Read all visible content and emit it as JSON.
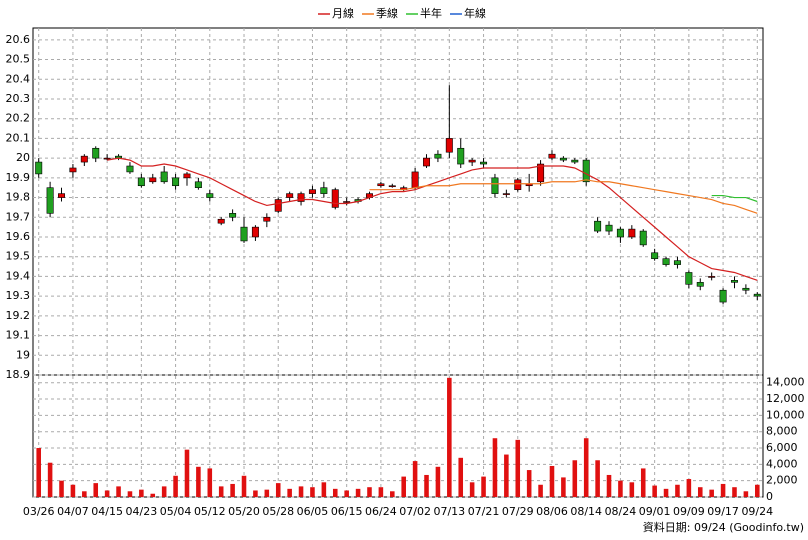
{
  "chart_data": {
    "type": "candlestick",
    "legend": [
      {
        "name": "月線",
        "color": "#d42020"
      },
      {
        "name": "季線",
        "color": "#f07820"
      },
      {
        "name": "半年",
        "color": "#30c030"
      },
      {
        "name": "年線",
        "color": "#2060d0"
      }
    ],
    "categories": [
      "03/26",
      null,
      null,
      "04/07",
      null,
      null,
      "04/15",
      null,
      null,
      "04/23",
      null,
      null,
      "05/04",
      null,
      null,
      "05/12",
      null,
      null,
      "05/20",
      null,
      null,
      "05/28",
      null,
      null,
      "06/05",
      null,
      null,
      "06/15",
      null,
      null,
      "06/24",
      null,
      null,
      "07/02",
      null,
      null,
      "07/13",
      null,
      null,
      "07/21",
      null,
      null,
      "07/29",
      null,
      null,
      "08/06",
      null,
      null,
      "08/14",
      null,
      null,
      "08/24",
      null,
      null,
      "09/01",
      null,
      null,
      "09/09",
      null,
      null,
      "09/17",
      null,
      null,
      "09/24"
    ],
    "open": [
      19.98,
      19.85,
      19.8,
      19.93,
      19.98,
      20.05,
      20.0,
      20.01,
      19.96,
      19.9,
      19.88,
      19.93,
      19.9,
      19.9,
      19.88,
      19.82,
      19.67,
      19.72,
      19.65,
      19.6,
      19.68,
      19.73,
      19.8,
      19.78,
      19.82,
      19.85,
      19.75,
      19.78,
      19.79,
      19.8,
      19.86,
      19.86,
      19.84,
      19.85,
      19.96,
      20.02,
      20.03,
      20.05,
      19.98,
      19.98,
      19.9,
      19.82,
      19.84,
      19.86,
      19.88,
      20.0,
      20.0,
      19.99,
      19.99,
      19.68,
      19.66,
      19.64,
      19.6,
      19.63,
      19.52,
      19.49,
      19.48,
      19.42,
      19.37,
      19.4,
      19.33,
      19.38,
      19.34,
      19.31
    ],
    "high": [
      20.0,
      19.88,
      19.85,
      19.97,
      20.02,
      20.06,
      20.02,
      20.02,
      19.98,
      19.92,
      19.92,
      19.96,
      19.92,
      19.93,
      19.9,
      19.84,
      19.7,
      19.74,
      19.7,
      19.66,
      19.72,
      19.8,
      19.83,
      19.83,
      19.86,
      19.88,
      19.85,
      19.8,
      19.8,
      19.83,
      19.88,
      19.87,
      19.86,
      19.95,
      20.02,
      20.04,
      20.37,
      20.1,
      20.0,
      20.0,
      19.92,
      19.84,
      19.9,
      19.92,
      19.99,
      20.04,
      20.01,
      20.0,
      20.0,
      19.7,
      19.68,
      19.65,
      19.66,
      19.64,
      19.54,
      19.5,
      19.5,
      19.43,
      19.39,
      19.42,
      19.34,
      19.4,
      19.36,
      19.32
    ],
    "low": [
      19.9,
      19.7,
      19.78,
      19.9,
      19.96,
      19.98,
      19.99,
      19.99,
      19.92,
      19.85,
      19.87,
      19.87,
      19.84,
      19.86,
      19.84,
      19.78,
      19.66,
      19.68,
      19.57,
      19.58,
      19.65,
      19.72,
      19.78,
      19.76,
      19.8,
      19.8,
      19.74,
      19.76,
      19.77,
      19.79,
      19.85,
      19.85,
      19.83,
      19.84,
      19.95,
      19.98,
      20.0,
      19.95,
      19.96,
      19.95,
      19.8,
      19.8,
      19.83,
      19.83,
      19.86,
      19.99,
      19.98,
      19.97,
      19.86,
      19.62,
      19.61,
      19.57,
      19.59,
      19.55,
      19.48,
      19.45,
      19.44,
      19.34,
      19.33,
      19.38,
      19.26,
      19.34,
      19.31,
      19.28
    ],
    "close": [
      19.92,
      19.72,
      19.82,
      19.95,
      20.01,
      20.0,
      20.0,
      20.0,
      19.93,
      19.86,
      19.9,
      19.88,
      19.86,
      19.92,
      19.85,
      19.8,
      19.69,
      19.7,
      19.58,
      19.65,
      19.7,
      19.79,
      19.82,
      19.82,
      19.84,
      19.82,
      19.84,
      19.78,
      19.78,
      19.82,
      19.87,
      19.86,
      19.85,
      19.93,
      20.0,
      20.0,
      20.1,
      19.97,
      19.99,
      19.97,
      19.82,
      19.82,
      19.89,
      19.87,
      19.97,
      20.02,
      19.99,
      19.98,
      19.88,
      19.63,
      19.63,
      19.6,
      19.64,
      19.56,
      19.49,
      19.46,
      19.46,
      19.36,
      19.35,
      19.4,
      19.27,
      19.37,
      19.33,
      19.3
    ],
    "up_color": "#e00000",
    "down_color": "#20a020",
    "series": [
      {
        "name": "月線",
        "color": "#d42020",
        "values": [
          null,
          null,
          null,
          null,
          null,
          null,
          19.99,
          20.0,
          19.99,
          19.96,
          19.96,
          19.97,
          19.96,
          19.94,
          19.92,
          19.9,
          19.87,
          19.84,
          19.81,
          19.78,
          19.76,
          19.77,
          19.78,
          19.79,
          19.79,
          19.78,
          19.77,
          19.77,
          19.78,
          19.8,
          19.82,
          19.83,
          19.83,
          19.84,
          19.86,
          19.88,
          19.9,
          19.92,
          19.94,
          19.95,
          19.95,
          19.95,
          19.95,
          19.95,
          19.96,
          19.96,
          19.96,
          19.95,
          19.92,
          19.89,
          19.85,
          19.8,
          19.75,
          19.7,
          19.65,
          19.6,
          19.55,
          19.5,
          19.47,
          19.44,
          19.43,
          19.42,
          19.4,
          19.38
        ]
      },
      {
        "name": "季線",
        "color": "#f07820",
        "values": [
          null,
          null,
          null,
          null,
          null,
          null,
          null,
          null,
          null,
          null,
          null,
          null,
          null,
          null,
          null,
          null,
          null,
          null,
          null,
          null,
          null,
          null,
          null,
          null,
          null,
          null,
          null,
          null,
          null,
          19.84,
          19.84,
          19.84,
          19.84,
          19.85,
          19.86,
          19.86,
          19.86,
          19.87,
          19.87,
          19.87,
          19.87,
          19.87,
          19.87,
          19.87,
          19.87,
          19.88,
          19.88,
          19.88,
          19.89,
          19.88,
          19.88,
          19.87,
          19.86,
          19.85,
          19.84,
          19.83,
          19.82,
          19.81,
          19.8,
          19.79,
          19.77,
          19.76,
          19.74,
          19.72
        ]
      },
      {
        "name": "半年",
        "color": "#30c030",
        "values": [
          null,
          null,
          null,
          null,
          null,
          null,
          null,
          null,
          null,
          null,
          null,
          null,
          null,
          null,
          null,
          null,
          null,
          null,
          null,
          null,
          null,
          null,
          null,
          null,
          null,
          null,
          null,
          null,
          null,
          null,
          null,
          null,
          null,
          null,
          null,
          null,
          null,
          null,
          null,
          null,
          null,
          null,
          null,
          null,
          null,
          null,
          null,
          null,
          null,
          null,
          null,
          null,
          null,
          null,
          null,
          null,
          null,
          null,
          null,
          19.81,
          19.81,
          19.8,
          19.8,
          19.78
        ]
      },
      {
        "name": "年線",
        "color": "#2060d0",
        "values": [
          null,
          null,
          null,
          null,
          null,
          null,
          null,
          null,
          null,
          null,
          null,
          null,
          null,
          null,
          null,
          null,
          null,
          null,
          null,
          null,
          null,
          null,
          null,
          null,
          null,
          null,
          null,
          null,
          null,
          null,
          null,
          null,
          null,
          null,
          null,
          null,
          null,
          null,
          null,
          null,
          null,
          null,
          null,
          null,
          null,
          null,
          null,
          null,
          null,
          null,
          null,
          null,
          null,
          null,
          null,
          null,
          null,
          null,
          null,
          null,
          null,
          null,
          null,
          null
        ]
      }
    ],
    "ylim": [
      18.9,
      20.66
    ],
    "yticks": [
      18.9,
      19,
      19.1,
      19.2,
      19.3,
      19.4,
      19.5,
      19.6,
      19.7,
      19.8,
      19.9,
      20,
      20.1,
      20.2,
      20.3,
      20.4,
      20.5,
      20.6
    ],
    "volume": {
      "color": "#e01010",
      "values": [
        6000,
        4200,
        2000,
        1500,
        700,
        1700,
        800,
        1300,
        700,
        900,
        400,
        1300,
        2600,
        5800,
        3700,
        3500,
        1300,
        1600,
        2600,
        800,
        900,
        1700,
        1000,
        1300,
        1200,
        1800,
        1000,
        800,
        1000,
        1200,
        1200,
        700,
        2500,
        4400,
        2700,
        3700,
        14600,
        4800,
        1800,
        2500,
        7200,
        5200,
        7000,
        3300,
        1500,
        3800,
        2400,
        4500,
        7200,
        4500,
        2700,
        2000,
        1800,
        3500,
        1400,
        1000,
        1500,
        2200,
        1200,
        900,
        1600,
        1200,
        700,
        1500
      ],
      "ylim": [
        0,
        14700
      ],
      "yticks": [
        0,
        {
          "value": 2000,
          "label": "2,000"
        },
        {
          "value": 4000,
          "label": "4,000"
        },
        {
          "value": 6000,
          "label": "6,000"
        },
        {
          "value": 8000,
          "label": "8,000"
        },
        {
          "value": 10000,
          "label": "10,000"
        },
        {
          "value": 12000,
          "label": "12,000"
        },
        {
          "value": 14000,
          "label": "14,000"
        }
      ]
    },
    "grid": true,
    "footer": "資料日期: 09/24 (Goodinfo.tw)"
  }
}
